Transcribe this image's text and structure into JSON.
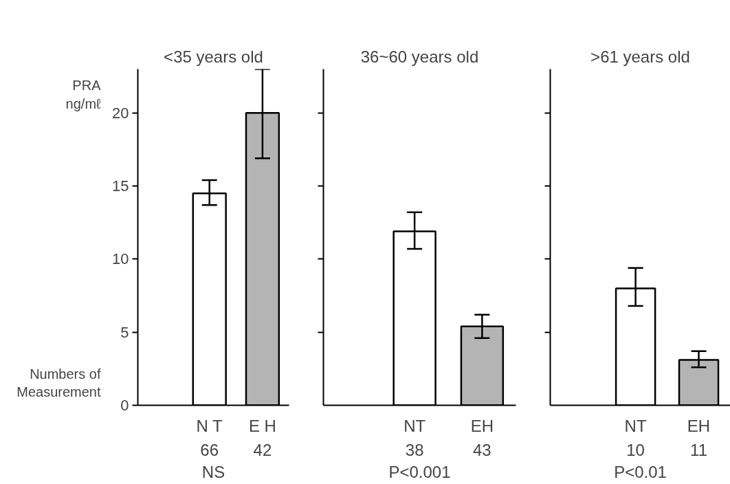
{
  "chart_data": [
    {
      "type": "bar",
      "title": "<35 years old",
      "ylabel": "PRA ng/mℓ",
      "categories": [
        "N T",
        "E H"
      ],
      "values": [
        14.5,
        20
      ],
      "colors": [
        "#ffffff",
        "#b4b4b4"
      ],
      "errors": [
        [
          13.7,
          15.4
        ],
        [
          16.9,
          23
        ]
      ],
      "ylim": [
        0,
        23
      ],
      "yticks": [
        0,
        5,
        10,
        15,
        20
      ],
      "grid": false,
      "annotations": [
        "Numbers of Measurement",
        "66",
        "42",
        "NS"
      ]
    },
    {
      "type": "bar",
      "title": "36~60 years old",
      "categories": [
        "NT",
        "EH"
      ],
      "values": [
        11.9,
        5.4
      ],
      "colors": [
        "#ffffff",
        "#b4b4b4"
      ],
      "errors": [
        [
          10.7,
          13.2
        ],
        [
          4.6,
          6.2
        ]
      ],
      "ylim": [
        0,
        23
      ],
      "yticks": [
        5,
        10,
        15,
        20
      ],
      "tick_labels": "x",
      "grid": false,
      "annotations": [
        "38",
        "43",
        "P<0.001"
      ]
    },
    {
      "type": "bar",
      "title": ">61 years old",
      "categories": [
        "NT",
        "EH"
      ],
      "values": [
        8.0,
        3.1
      ],
      "colors": [
        "#ffffff",
        "#b4b4b4"
      ],
      "errors": [
        [
          6.8,
          9.4
        ],
        [
          2.6,
          3.7
        ]
      ],
      "ylim": [
        0,
        23
      ],
      "yticks": [
        5,
        10,
        15,
        20
      ],
      "tick_labels": "x",
      "grid": false,
      "annotations": [
        "10",
        "11",
        "P<0.01"
      ]
    }
  ]
}
